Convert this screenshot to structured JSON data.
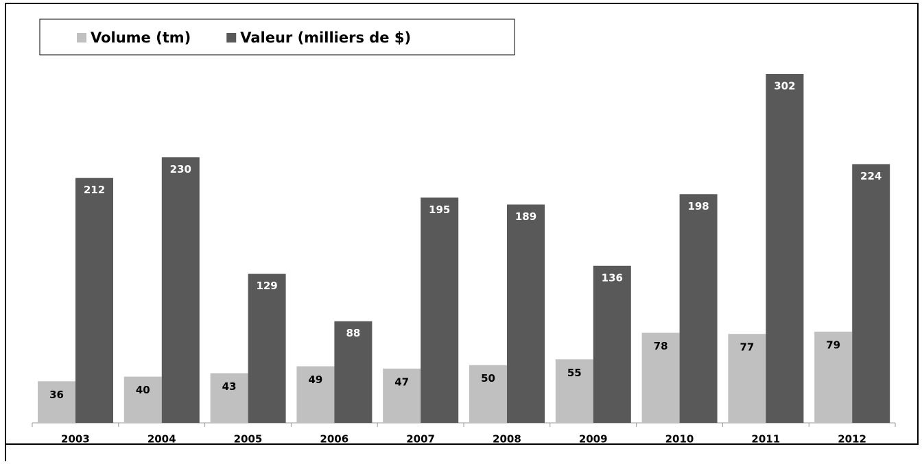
{
  "chart_data": {
    "type": "bar",
    "categories": [
      "2003",
      "2004",
      "2005",
      "2006",
      "2007",
      "2008",
      "2009",
      "2010",
      "2011",
      "2012"
    ],
    "series": [
      {
        "name": "Volume (tm)",
        "color": "#c0c0c0",
        "values": [
          36,
          40,
          43,
          49,
          47,
          50,
          55,
          78,
          77,
          79
        ]
      },
      {
        "name": "Valeur (milliers de $)",
        "color": "#595959",
        "values": [
          212,
          230,
          129,
          88,
          195,
          189,
          136,
          198,
          302,
          224
        ]
      }
    ],
    "legend": "top-left"
  }
}
